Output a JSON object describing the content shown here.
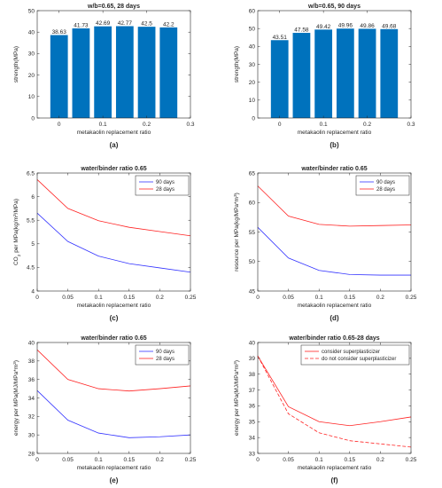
{
  "colors": {
    "bar": "#0072BD",
    "blue": "#3333FF",
    "red": "#FF2222",
    "axis": "#262626",
    "grid": "#F0F0F0"
  },
  "chart_data": [
    {
      "id": "a",
      "type": "bar",
      "title": "w/b=0.65, 28 days",
      "xlabel": "metakaolin replacement ratio",
      "ylabel": "strength(MPa)",
      "panel_label": "(a)",
      "xlim": [
        -0.05,
        0.3
      ],
      "ylim": [
        0,
        50
      ],
      "xticks": [
        0,
        0.1,
        0.2,
        0.3
      ],
      "xticklabels": [
        "0",
        "0.1",
        "0.2",
        "0.3"
      ],
      "yticks": [
        0,
        10,
        20,
        30,
        40,
        50
      ],
      "yticklabels": [
        "0",
        "10",
        "20",
        "30",
        "40",
        "50"
      ],
      "x": [
        0,
        0.05,
        0.1,
        0.15,
        0.2,
        0.25
      ],
      "values": [
        38.63,
        41.73,
        42.69,
        42.77,
        42.5,
        42.2
      ],
      "value_labels": [
        "38.63",
        "41.73",
        "42.69",
        "42.77",
        "42.5",
        "42.2"
      ]
    },
    {
      "id": "b",
      "type": "bar",
      "title": "w/b=0.65, 90 days",
      "xlabel": "metakaolin replacement ratio",
      "ylabel": "strength(MPa)",
      "panel_label": "(b)",
      "xlim": [
        -0.05,
        0.3
      ],
      "ylim": [
        0,
        60
      ],
      "xticks": [
        0,
        0.1,
        0.2,
        0.3
      ],
      "xticklabels": [
        "0",
        "0.1",
        "0.2",
        "0.3"
      ],
      "yticks": [
        0,
        10,
        20,
        30,
        40,
        50,
        60
      ],
      "yticklabels": [
        "0",
        "10",
        "20",
        "30",
        "40",
        "50",
        "60"
      ],
      "x": [
        0,
        0.05,
        0.1,
        0.15,
        0.2,
        0.25
      ],
      "values": [
        43.51,
        47.58,
        49.42,
        49.96,
        49.86,
        49.68
      ],
      "value_labels": [
        "43.51",
        "47.58",
        "49.42",
        "49.96",
        "49.86",
        "49.68"
      ]
    },
    {
      "id": "c",
      "type": "line",
      "title": "water/binder ratio 0.65",
      "xlabel": "metakaolin replacement ratio",
      "ylabel_parts": [
        "CO",
        "2",
        " per MPa(kg/m",
        "3",
        "/MPa)"
      ],
      "panel_label": "(c)",
      "xlim": [
        0,
        0.25
      ],
      "ylim": [
        4,
        6.5
      ],
      "xticks": [
        0,
        0.05,
        0.1,
        0.15,
        0.2,
        0.25
      ],
      "xticklabels": [
        "0",
        "0.05",
        "0.1",
        "0.15",
        "0.2",
        "0.25"
      ],
      "yticks": [
        4,
        4.5,
        5,
        5.5,
        6,
        6.5
      ],
      "yticklabels": [
        "4",
        "4.5",
        "5",
        "5.5",
        "6",
        "6.5"
      ],
      "x": [
        0,
        0.05,
        0.1,
        0.15,
        0.2,
        0.25
      ],
      "legend_position": "top-right",
      "series": [
        {
          "name": "90 days",
          "color": "blue",
          "style": "solid",
          "values": [
            5.65,
            5.05,
            4.74,
            4.58,
            4.49,
            4.4
          ]
        },
        {
          "name": "28 days",
          "color": "red",
          "style": "solid",
          "values": [
            6.36,
            5.75,
            5.49,
            5.35,
            5.26,
            5.17
          ]
        }
      ]
    },
    {
      "id": "d",
      "type": "line",
      "title": "water/binder ratio 0.65",
      "xlabel": "metakaolin replacement ratio",
      "ylabel_parts": [
        "resource per MPa(kg/MPa*m",
        "3",
        ")"
      ],
      "panel_label": "(d)",
      "xlim": [
        0,
        0.25
      ],
      "ylim": [
        45,
        65
      ],
      "xticks": [
        0,
        0.05,
        0.1,
        0.15,
        0.2,
        0.25
      ],
      "xticklabels": [
        "0",
        "0.05",
        "0.1",
        "0.15",
        "0.2",
        "0.25"
      ],
      "yticks": [
        45,
        50,
        55,
        60,
        65
      ],
      "yticklabels": [
        "45",
        "50",
        "55",
        "60",
        "65"
      ],
      "x": [
        0,
        0.05,
        0.1,
        0.15,
        0.2,
        0.25
      ],
      "legend_position": "top-right",
      "series": [
        {
          "name": "90 days",
          "color": "blue",
          "style": "solid",
          "values": [
            55.8,
            50.6,
            48.5,
            47.8,
            47.7,
            47.7
          ]
        },
        {
          "name": "28 days",
          "color": "red",
          "style": "solid",
          "values": [
            62.8,
            57.7,
            56.3,
            56.0,
            56.1,
            56.2
          ]
        }
      ]
    },
    {
      "id": "e",
      "type": "line",
      "title": "water/binder ratio 0.65",
      "xlabel": "metakaolin replacement ratio",
      "ylabel_parts": [
        "energy per MPa(MJ/MPa*m",
        "3",
        ")"
      ],
      "panel_label": "(e)",
      "xlim": [
        0,
        0.25
      ],
      "ylim": [
        28,
        40
      ],
      "xticks": [
        0,
        0.05,
        0.1,
        0.15,
        0.2,
        0.25
      ],
      "xticklabels": [
        "0",
        "0.05",
        "0.1",
        "0.15",
        "0.2",
        "0.25"
      ],
      "yticks": [
        28,
        30,
        32,
        34,
        36,
        38,
        40
      ],
      "yticklabels": [
        "28",
        "30",
        "32",
        "34",
        "36",
        "38",
        "40"
      ],
      "x": [
        0,
        0.05,
        0.1,
        0.15,
        0.2,
        0.25
      ],
      "legend_position": "top-right",
      "series": [
        {
          "name": "90 days",
          "color": "blue",
          "style": "solid",
          "values": [
            34.8,
            31.6,
            30.2,
            29.7,
            29.8,
            30.0
          ]
        },
        {
          "name": "28 days",
          "color": "red",
          "style": "solid",
          "values": [
            39.2,
            36.0,
            35.0,
            34.75,
            35.0,
            35.3
          ]
        }
      ]
    },
    {
      "id": "f",
      "type": "line",
      "title": "water/binder ratio 0.65-28 days",
      "xlabel": "metakaolin replacement ratio",
      "ylabel_parts": [
        "energy per MPa(MJ/MPa*m",
        "3",
        ")"
      ],
      "panel_label": "(f)",
      "xlim": [
        0,
        0.25
      ],
      "ylim": [
        33,
        40
      ],
      "xticks": [
        0,
        0.05,
        0.1,
        0.15,
        0.2,
        0.25
      ],
      "xticklabels": [
        "0",
        "0.05",
        "0.1",
        "0.15",
        "0.2",
        "0.25"
      ],
      "yticks": [
        33,
        34,
        35,
        36,
        37,
        38,
        39,
        40
      ],
      "yticklabels": [
        "33",
        "34",
        "35",
        "36",
        "37",
        "38",
        "39",
        "40"
      ],
      "x": [
        0,
        0.05,
        0.1,
        0.15,
        0.2,
        0.25
      ],
      "legend_position": "top-right",
      "series": [
        {
          "name": "consider superplasticizer",
          "color": "red",
          "style": "solid",
          "values": [
            39.15,
            35.95,
            35.0,
            34.75,
            35.0,
            35.3
          ]
        },
        {
          "name": "do not consider superplasticizer",
          "color": "red",
          "style": "dashed",
          "values": [
            39.15,
            35.5,
            34.3,
            33.8,
            33.6,
            33.4
          ]
        }
      ]
    }
  ]
}
